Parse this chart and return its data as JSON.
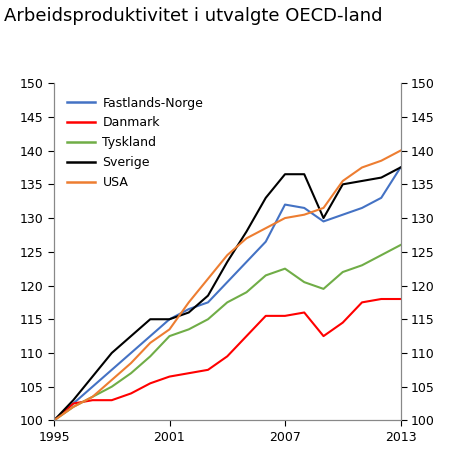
{
  "title": "Arbeidsproduktivitet i utvalgte OECD-land",
  "years": [
    1995,
    1996,
    1997,
    1998,
    1999,
    2000,
    2001,
    2002,
    2003,
    2004,
    2005,
    2006,
    2007,
    2008,
    2009,
    2010,
    2011,
    2012,
    2013
  ],
  "series": {
    "Fastlands-Norge": {
      "color": "#4472C4",
      "values": [
        100,
        102.5,
        105.0,
        107.5,
        110.0,
        112.5,
        115.0,
        116.5,
        117.5,
        120.5,
        123.5,
        126.5,
        132.0,
        131.5,
        129.5,
        130.5,
        131.5,
        133.0,
        137.5
      ]
    },
    "Danmark": {
      "color": "#FF0000",
      "values": [
        100,
        102.5,
        103.0,
        103.0,
        104.0,
        105.5,
        106.5,
        107.0,
        107.5,
        109.5,
        112.5,
        115.5,
        115.5,
        116.0,
        112.5,
        114.5,
        117.5,
        118.0,
        118.0
      ]
    },
    "Tyskland": {
      "color": "#70AD47",
      "values": [
        100,
        102.0,
        103.5,
        105.0,
        107.0,
        109.5,
        112.5,
        113.5,
        115.0,
        117.5,
        119.0,
        121.5,
        122.5,
        120.5,
        119.5,
        122.0,
        123.0,
        124.5,
        126.0
      ]
    },
    "Sverige": {
      "color": "#000000",
      "values": [
        100,
        103.0,
        106.5,
        110.0,
        112.5,
        115.0,
        115.0,
        116.0,
        118.5,
        123.5,
        128.0,
        133.0,
        136.5,
        136.5,
        130.0,
        135.0,
        135.5,
        136.0,
        137.5
      ]
    },
    "USA": {
      "color": "#ED7D31",
      "values": [
        100,
        102.0,
        103.5,
        106.0,
        108.5,
        111.5,
        113.5,
        117.5,
        121.0,
        124.5,
        127.0,
        128.5,
        130.0,
        130.5,
        131.5,
        135.5,
        137.5,
        138.5,
        140.0
      ]
    }
  },
  "xlim": [
    1995,
    2013
  ],
  "ylim": [
    100,
    150
  ],
  "yticks": [
    100,
    105,
    110,
    115,
    120,
    125,
    130,
    135,
    140,
    145,
    150
  ],
  "xticks": [
    1995,
    2001,
    2007,
    2013
  ],
  "title_fontsize": 13,
  "legend_fontsize": 9,
  "tick_fontsize": 9
}
